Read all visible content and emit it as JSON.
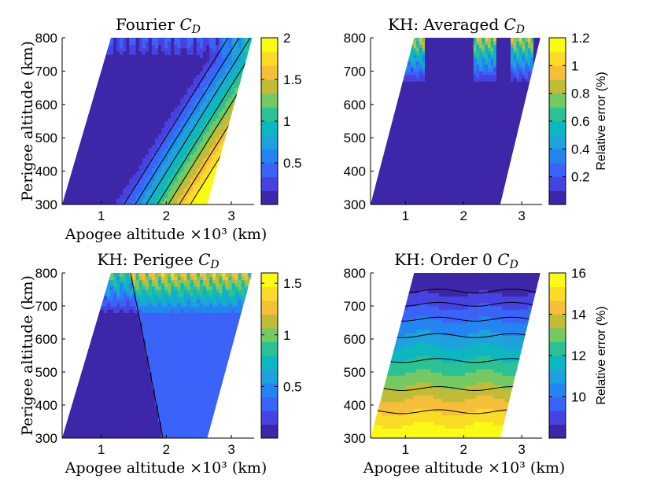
{
  "figure": {
    "xlabel": "Apogee altitude ×10³ (km)",
    "ylabel": "Perigee altitude (km)"
  },
  "colormap": [
    "#3e26a8",
    "#4743e0",
    "#3b63f8",
    "#2484f0",
    "#1ea2db",
    "#0cb7c0",
    "#2bc195",
    "#74c964",
    "#c0bc37",
    "#f6bf3a",
    "#f9dc26",
    "#f9fb15"
  ],
  "chart_data": [
    {
      "type": "heatmap",
      "title": "Fourier",
      "title_math": "C",
      "title_sub": "D",
      "xlabel": "Apogee altitude ×10³ (km)",
      "ylabel": "Perigee altitude (km)",
      "xlim": [
        0.4,
        3.35
      ],
      "ylim": [
        300,
        800
      ],
      "xticks": [
        1,
        2,
        3
      ],
      "yticks": [
        300,
        400,
        500,
        600,
        700,
        800
      ],
      "clim": [
        0,
        2
      ],
      "cticks": [
        0.5,
        1,
        1.5,
        2
      ],
      "colorbar_label": "",
      "levels": [
        0.6,
        0.8,
        1.0,
        1.2,
        1.4,
        1.6,
        1.8
      ],
      "domain": {
        "left_bottom": 0.4,
        "left_top": 1.15,
        "right_bottom": 2.63,
        "right_top": 3.32
      }
    },
    {
      "type": "heatmap",
      "title": "KH: Averaged",
      "title_math": "C",
      "title_sub": "D",
      "xlabel": "",
      "ylabel": "",
      "xlim": [
        0.4,
        3.35
      ],
      "ylim": [
        300,
        800
      ],
      "xticks": [
        1,
        2,
        3
      ],
      "yticks": [
        300,
        400,
        500,
        600,
        700,
        800
      ],
      "clim": [
        0,
        1.2
      ],
      "cticks": [
        0.2,
        0.4,
        0.6,
        0.8,
        1,
        1.2
      ],
      "colorbar_label": "Relative error (%)",
      "levels": [],
      "domain": {
        "left_bottom": 0.4,
        "left_top": 1.15,
        "right_bottom": 2.63,
        "right_top": 3.32
      }
    },
    {
      "type": "heatmap",
      "title": "KH: Perigee",
      "title_math": "C",
      "title_sub": "D",
      "xlabel": "Apogee altitude ×10³ (km)",
      "ylabel": "Perigee altitude (km)",
      "xlim": [
        0.4,
        3.35
      ],
      "ylim": [
        300,
        800
      ],
      "xticks": [
        1,
        2,
        3
      ],
      "yticks": [
        300,
        400,
        500,
        600,
        700,
        800
      ],
      "clim": [
        0,
        1.6
      ],
      "cticks": [
        0.5,
        1,
        1.5
      ],
      "colorbar_label": "",
      "levels": [],
      "domain": {
        "left_bottom": 0.4,
        "left_top": 1.15,
        "right_bottom": 2.63,
        "right_top": 3.32
      }
    },
    {
      "type": "heatmap",
      "title": "KH: Order 0",
      "title_math": "C",
      "title_sub": "D",
      "xlabel": "Apogee altitude ×10³ (km)",
      "ylabel": "",
      "xlim": [
        0.4,
        3.35
      ],
      "ylim": [
        300,
        800
      ],
      "xticks": [
        1,
        2,
        3
      ],
      "yticks": [
        300,
        400,
        500,
        600,
        700,
        800
      ],
      "clim": [
        8,
        16
      ],
      "cticks": [
        10,
        12,
        14,
        16
      ],
      "colorbar_label": "Relative error (%)",
      "levels": [
        380,
        450,
        535,
        610,
        660,
        705,
        745
      ],
      "domain": {
        "left_bottom": 0.4,
        "left_top": 1.15,
        "right_bottom": 2.63,
        "right_top": 3.32
      }
    }
  ]
}
